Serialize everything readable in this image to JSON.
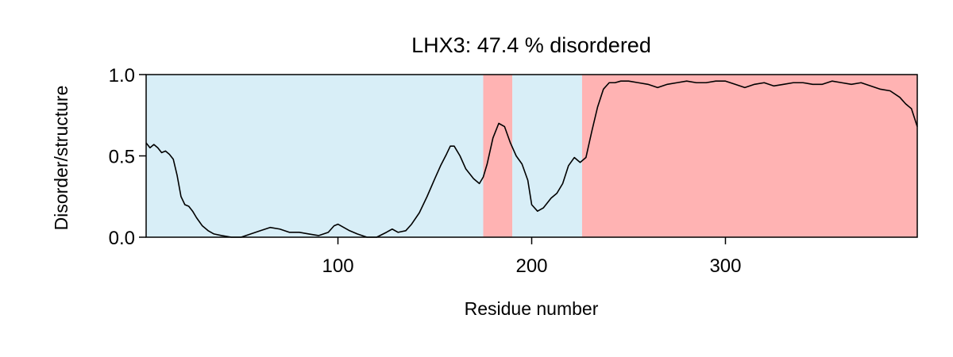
{
  "chart_data": {
    "type": "area",
    "title": "LHX3: 47.4 % disordered",
    "xlabel": "Residue number",
    "ylabel": "Disorder/structure",
    "xlim": [
      1,
      399
    ],
    "ylim": [
      0,
      1
    ],
    "xticks": [
      100,
      200,
      300
    ],
    "yticks": [
      0.0,
      0.5,
      1.0
    ],
    "ytick_labels": [
      "0.0",
      "0.5",
      "1.0"
    ],
    "grid": false,
    "legend": "none",
    "colors": {
      "structured": "#d8eef7",
      "disordered": "#ffb3b3",
      "line": "#000000"
    },
    "regions": [
      {
        "type": "structured",
        "start": 1,
        "end": 175
      },
      {
        "type": "disordered",
        "start": 175,
        "end": 190
      },
      {
        "type": "structured",
        "start": 190,
        "end": 226
      },
      {
        "type": "disordered",
        "start": 226,
        "end": 399
      }
    ],
    "series": [
      {
        "x": [
          1,
          3,
          5,
          7,
          9,
          11,
          13,
          15,
          17,
          19,
          21,
          23,
          25,
          27,
          30,
          33,
          36,
          40,
          45,
          50,
          55,
          60,
          65,
          70,
          75,
          80,
          85,
          90,
          95,
          98,
          100,
          103,
          106,
          110,
          115,
          120,
          125,
          128,
          131,
          135,
          138,
          142,
          146,
          150,
          153,
          156,
          158,
          160,
          163,
          166,
          170,
          173,
          175,
          177,
          180,
          183,
          186,
          189,
          192,
          195,
          198,
          200,
          203,
          206,
          210,
          213,
          216,
          219,
          222,
          225,
          228,
          231,
          234,
          237,
          240,
          243,
          246,
          250,
          255,
          260,
          265,
          270,
          275,
          280,
          285,
          290,
          295,
          300,
          305,
          310,
          315,
          320,
          325,
          330,
          335,
          340,
          345,
          350,
          355,
          360,
          365,
          370,
          375,
          380,
          385,
          390,
          393,
          396,
          399
        ],
        "values": [
          0.58,
          0.55,
          0.57,
          0.55,
          0.52,
          0.53,
          0.51,
          0.48,
          0.38,
          0.25,
          0.2,
          0.19,
          0.16,
          0.12,
          0.07,
          0.04,
          0.02,
          0.01,
          0.0,
          0.0,
          0.02,
          0.04,
          0.06,
          0.05,
          0.03,
          0.03,
          0.02,
          0.01,
          0.03,
          0.07,
          0.08,
          0.06,
          0.04,
          0.02,
          0.0,
          0.0,
          0.03,
          0.05,
          0.03,
          0.04,
          0.08,
          0.15,
          0.25,
          0.36,
          0.44,
          0.51,
          0.56,
          0.56,
          0.5,
          0.42,
          0.36,
          0.33,
          0.37,
          0.45,
          0.61,
          0.7,
          0.68,
          0.58,
          0.5,
          0.45,
          0.35,
          0.2,
          0.16,
          0.18,
          0.24,
          0.27,
          0.33,
          0.44,
          0.49,
          0.46,
          0.49,
          0.65,
          0.8,
          0.91,
          0.95,
          0.95,
          0.96,
          0.96,
          0.95,
          0.94,
          0.92,
          0.94,
          0.95,
          0.96,
          0.95,
          0.95,
          0.96,
          0.96,
          0.94,
          0.92,
          0.94,
          0.95,
          0.93,
          0.94,
          0.95,
          0.95,
          0.94,
          0.94,
          0.96,
          0.95,
          0.94,
          0.95,
          0.93,
          0.91,
          0.9,
          0.86,
          0.82,
          0.79,
          0.68
        ]
      }
    ]
  }
}
